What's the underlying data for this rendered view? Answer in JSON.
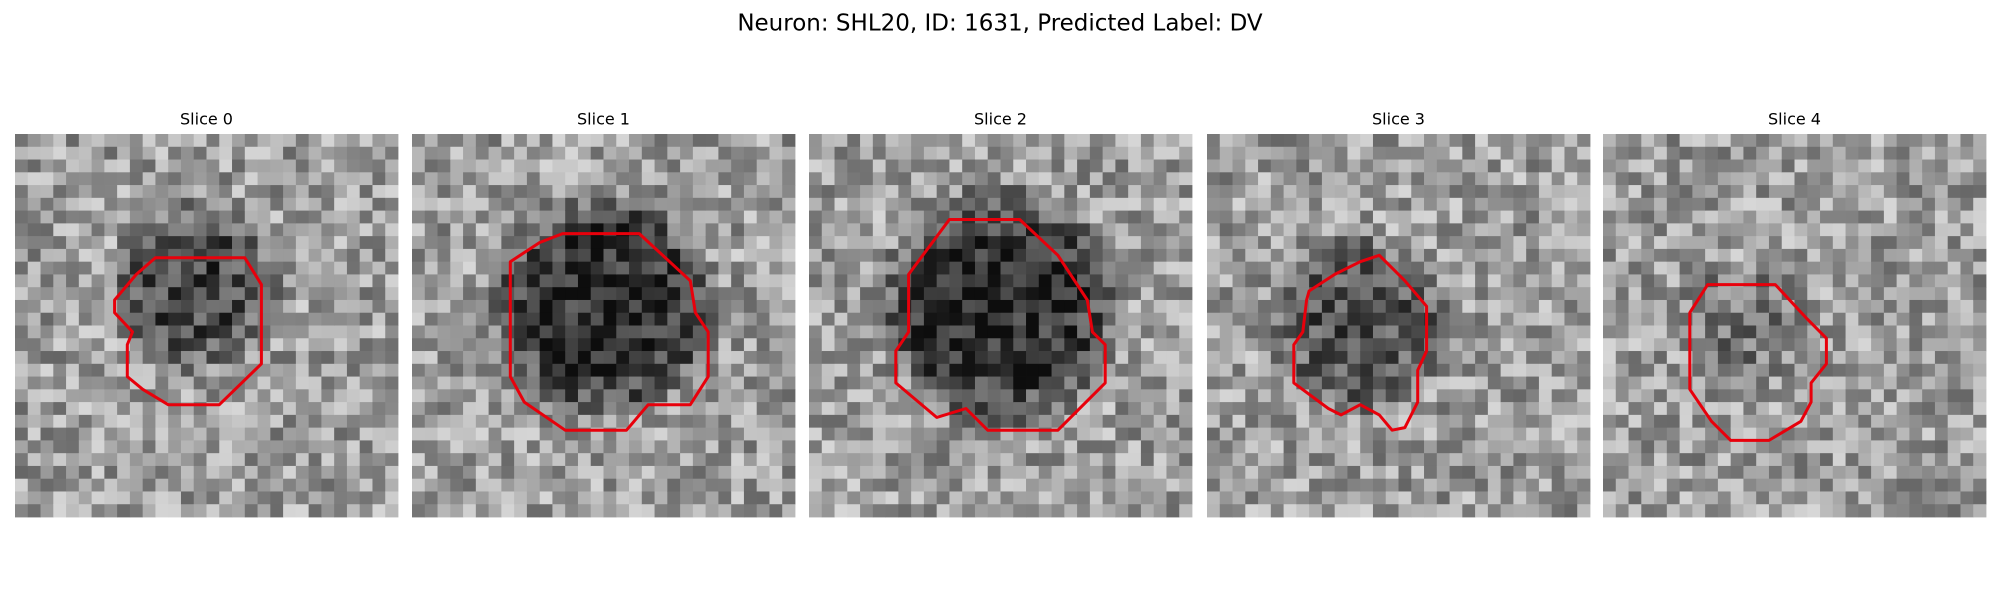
{
  "title": "Neuron: SHL20, ID: 1631, Predicted Label: DV",
  "panels": [
    {
      "title": "Slice 0"
    },
    {
      "title": "Slice 1"
    },
    {
      "title": "Slice 2"
    },
    {
      "title": "Slice 3"
    },
    {
      "title": "Slice 4"
    }
  ]
}
